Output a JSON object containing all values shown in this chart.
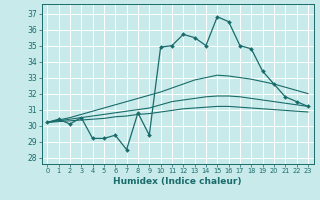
{
  "xlabel": "Humidex (Indice chaleur)",
  "bg_color": "#c8eaea",
  "grid_color": "#ffffff",
  "line_color": "#1a6b6b",
  "xlim": [
    -0.5,
    23.5
  ],
  "ylim": [
    27.6,
    37.6
  ],
  "yticks": [
    28,
    29,
    30,
    31,
    32,
    33,
    34,
    35,
    36,
    37
  ],
  "xticks": [
    0,
    1,
    2,
    3,
    4,
    5,
    6,
    7,
    8,
    9,
    10,
    11,
    12,
    13,
    14,
    15,
    16,
    17,
    18,
    19,
    20,
    21,
    22,
    23
  ],
  "line1_x": [
    0,
    1,
    2,
    3,
    4,
    5,
    6,
    7,
    8,
    9,
    10,
    11,
    12,
    13,
    14,
    15,
    16,
    17,
    18,
    19,
    20,
    21,
    22,
    23
  ],
  "line1_y": [
    30.2,
    30.4,
    30.1,
    30.5,
    29.2,
    29.2,
    29.4,
    28.5,
    30.8,
    29.4,
    34.9,
    35.0,
    35.7,
    35.5,
    35.0,
    36.8,
    36.5,
    35.0,
    34.8,
    33.4,
    32.6,
    31.8,
    31.5,
    31.2
  ],
  "line2_x": [
    0,
    1,
    2,
    3,
    4,
    5,
    6,
    7,
    8,
    9,
    10,
    11,
    12,
    13,
    14,
    15,
    16,
    17,
    18,
    19,
    20,
    21,
    22,
    23
  ],
  "line2_y": [
    30.2,
    30.35,
    30.5,
    30.7,
    30.9,
    31.1,
    31.3,
    31.5,
    31.7,
    31.9,
    32.1,
    32.35,
    32.6,
    32.85,
    33.0,
    33.15,
    33.1,
    33.0,
    32.9,
    32.75,
    32.6,
    32.4,
    32.2,
    32.0
  ],
  "line3_x": [
    0,
    1,
    2,
    3,
    4,
    5,
    6,
    7,
    8,
    9,
    10,
    11,
    12,
    13,
    14,
    15,
    16,
    17,
    18,
    19,
    20,
    21,
    22,
    23
  ],
  "line3_y": [
    30.2,
    30.3,
    30.4,
    30.5,
    30.6,
    30.7,
    30.8,
    30.9,
    31.0,
    31.1,
    31.3,
    31.5,
    31.6,
    31.7,
    31.8,
    31.85,
    31.85,
    31.8,
    31.7,
    31.6,
    31.5,
    31.4,
    31.3,
    31.2
  ],
  "line4_x": [
    0,
    1,
    2,
    3,
    4,
    5,
    6,
    7,
    8,
    9,
    10,
    11,
    12,
    13,
    14,
    15,
    16,
    17,
    18,
    19,
    20,
    21,
    22,
    23
  ],
  "line4_y": [
    30.2,
    30.25,
    30.3,
    30.35,
    30.4,
    30.45,
    30.55,
    30.6,
    30.7,
    30.75,
    30.85,
    30.95,
    31.05,
    31.1,
    31.15,
    31.2,
    31.2,
    31.15,
    31.1,
    31.05,
    31.0,
    30.95,
    30.9,
    30.85
  ]
}
